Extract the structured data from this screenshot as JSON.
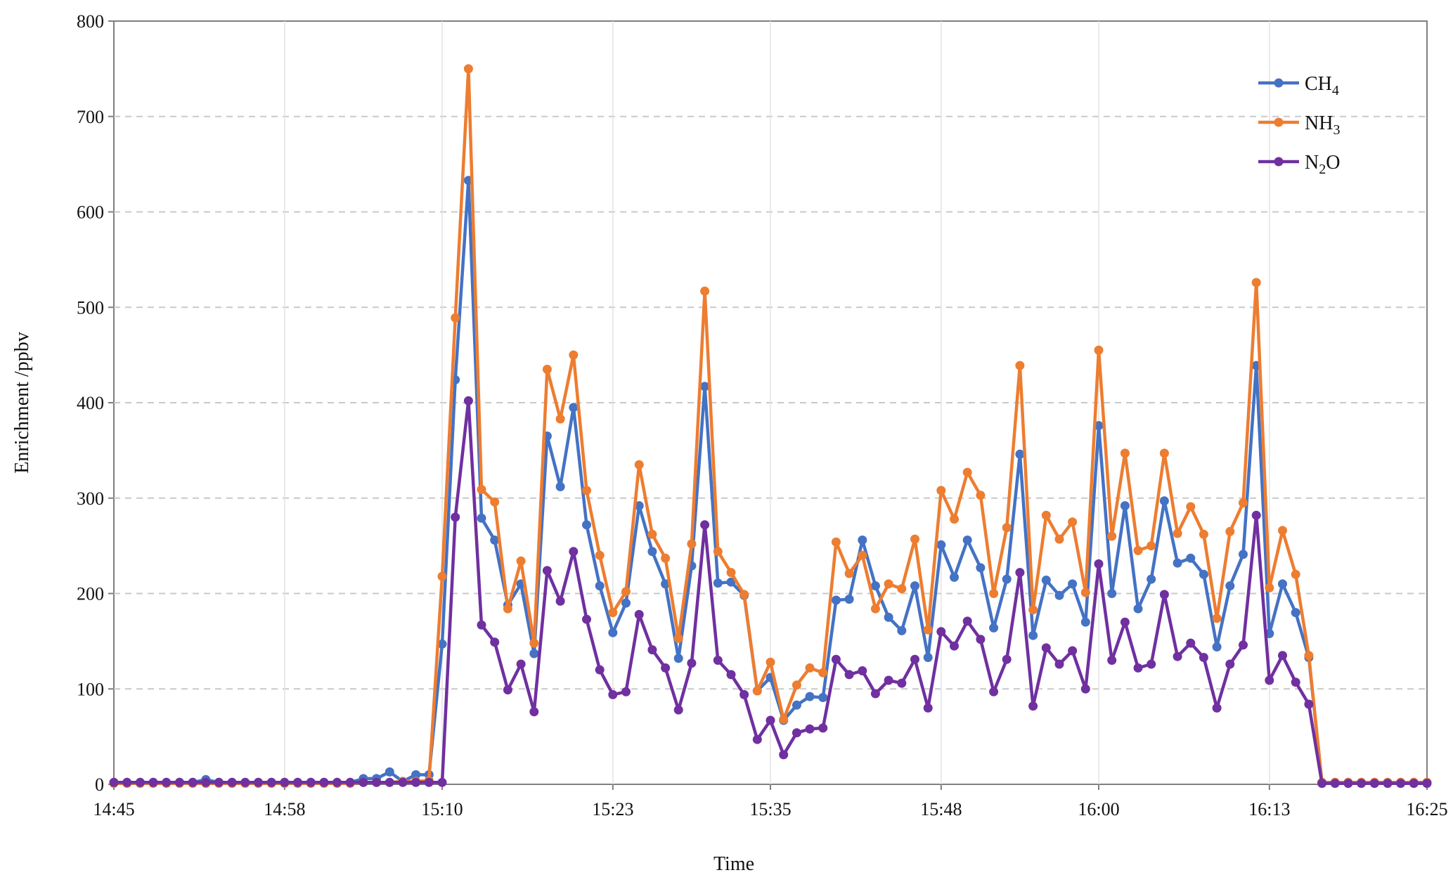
{
  "chart_data": {
    "type": "line",
    "xlabel": "Time",
    "ylabel": "Enrichment /ppbv",
    "ylim": [
      0,
      800
    ],
    "yticks": [
      0,
      100,
      200,
      300,
      400,
      500,
      600,
      700,
      800
    ],
    "xlim": [
      "14:45",
      "16:25"
    ],
    "xticks": [
      "14:45",
      "14:58",
      "15:10",
      "15:23",
      "15:35",
      "15:48",
      "16:00",
      "16:13",
      "16:25"
    ],
    "grid": "horizontal-dashed",
    "legend": "top-right",
    "x": [
      "14:45",
      "14:46",
      "14:47",
      "14:48",
      "14:49",
      "14:50",
      "14:51",
      "14:52",
      "14:53",
      "14:54",
      "14:55",
      "14:56",
      "14:57",
      "14:58",
      "14:59",
      "15:00",
      "15:01",
      "15:02",
      "15:03",
      "15:04",
      "15:05",
      "15:06",
      "15:07",
      "15:08",
      "15:09",
      "15:10",
      "15:11",
      "15:12",
      "15:13",
      "15:14",
      "15:15",
      "15:16",
      "15:17",
      "15:18",
      "15:19",
      "15:20",
      "15:21",
      "15:22",
      "15:23",
      "15:24",
      "15:25",
      "15:26",
      "15:27",
      "15:28",
      "15:29",
      "15:30",
      "15:31",
      "15:32",
      "15:33",
      "15:34",
      "15:35",
      "15:36",
      "15:37",
      "15:38",
      "15:39",
      "15:40",
      "15:41",
      "15:42",
      "15:43",
      "15:44",
      "15:45",
      "15:46",
      "15:47",
      "15:48",
      "15:49",
      "15:50",
      "15:51",
      "15:52",
      "15:53",
      "15:54",
      "15:55",
      "15:56",
      "15:57",
      "15:58",
      "15:59",
      "16:00",
      "16:01",
      "16:02",
      "16:03",
      "16:04",
      "16:05",
      "16:06",
      "16:07",
      "16:08",
      "16:09",
      "16:10",
      "16:11",
      "16:12",
      "16:13",
      "16:14",
      "16:15",
      "16:16",
      "16:17",
      "16:18",
      "16:19",
      "16:20",
      "16:21",
      "16:22",
      "16:23",
      "16:24",
      "16:25"
    ],
    "series": [
      {
        "name": "CH4",
        "name_base": "CH",
        "name_sub": "4",
        "color": "#4472C4",
        "values": [
          2,
          2,
          2,
          2,
          2,
          2,
          2,
          5,
          2,
          2,
          2,
          2,
          2,
          2,
          2,
          2,
          2,
          2,
          2,
          6,
          6,
          13,
          3,
          10,
          10,
          147,
          424,
          633,
          279,
          256,
          188,
          210,
          137,
          365,
          312,
          395,
          272,
          208,
          159,
          190,
          292,
          244,
          210,
          132,
          229,
          417,
          211,
          212,
          198,
          98,
          112,
          67,
          83,
          92,
          91,
          193,
          194,
          256,
          208,
          175,
          161,
          208,
          133,
          251,
          217,
          256,
          227,
          164,
          215,
          346,
          156,
          214,
          198,
          210,
          170,
          376,
          200,
          292,
          184,
          215,
          297,
          232,
          237,
          220,
          144,
          208,
          241,
          439,
          158,
          210,
          180,
          133,
          2,
          2,
          2,
          2,
          2,
          2,
          2,
          2,
          2
        ]
      },
      {
        "name": "NH3",
        "name_base": "NH",
        "name_sub": "3",
        "color": "#ED7D31",
        "values": [
          1,
          1,
          1,
          1,
          1,
          1,
          1,
          1,
          1,
          1,
          1,
          1,
          1,
          1,
          1,
          1,
          1,
          1,
          1,
          2,
          2,
          2,
          3,
          3,
          4,
          218,
          489,
          750,
          309,
          296,
          184,
          234,
          148,
          435,
          383,
          450,
          308,
          240,
          180,
          202,
          335,
          262,
          237,
          153,
          252,
          517,
          244,
          222,
          199,
          98,
          128,
          68,
          104,
          122,
          117,
          254,
          221,
          240,
          184,
          210,
          205,
          257,
          162,
          308,
          278,
          327,
          303,
          200,
          269,
          439,
          183,
          282,
          257,
          275,
          201,
          455,
          260,
          347,
          245,
          250,
          347,
          263,
          291,
          262,
          174,
          265,
          295,
          526,
          206,
          266,
          220,
          135,
          2,
          2,
          2,
          2,
          2,
          2,
          2,
          2,
          2
        ]
      },
      {
        "name": "N2O",
        "name_base": "N",
        "name_sub": "2",
        "name_tail": "O",
        "color": "#7030A0",
        "values": [
          2,
          2,
          2,
          2,
          2,
          2,
          2,
          2,
          2,
          2,
          2,
          2,
          2,
          2,
          2,
          2,
          2,
          2,
          2,
          2,
          2,
          2,
          2,
          2,
          2,
          2,
          280,
          402,
          167,
          149,
          99,
          126,
          76,
          224,
          192,
          244,
          173,
          120,
          94,
          97,
          178,
          141,
          122,
          78,
          127,
          272,
          130,
          115,
          94,
          47,
          67,
          31,
          54,
          58,
          59,
          131,
          115,
          119,
          95,
          109,
          106,
          131,
          80,
          160,
          145,
          171,
          152,
          97,
          131,
          222,
          82,
          143,
          126,
          140,
          100,
          231,
          130,
          170,
          122,
          126,
          199,
          134,
          148,
          133,
          80,
          126,
          146,
          282,
          109,
          135,
          107,
          84,
          1,
          1,
          1,
          1,
          1,
          1,
          1,
          1,
          1
        ]
      }
    ]
  }
}
